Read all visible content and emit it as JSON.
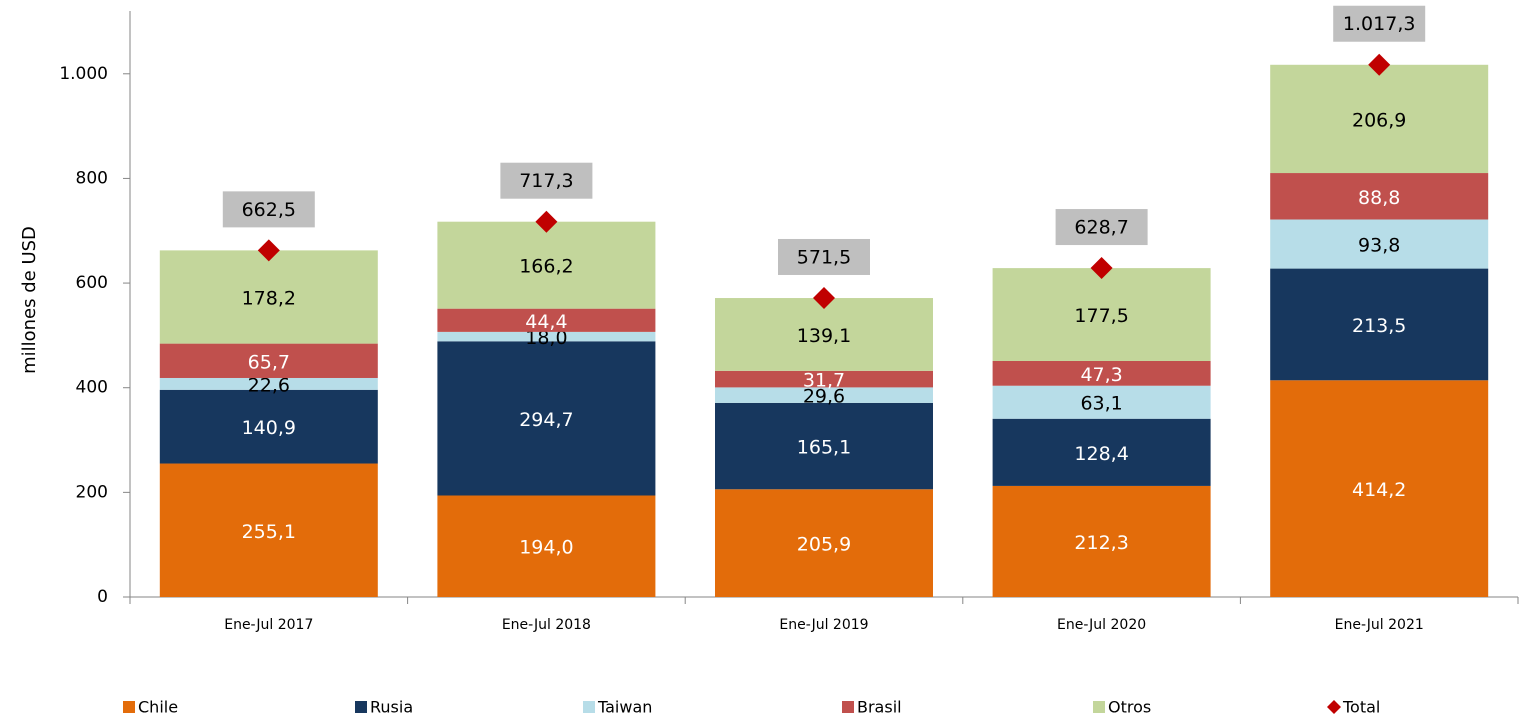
{
  "chart_data": {
    "type": "bar",
    "stacked": true,
    "y_label": "millones de  USD",
    "categories": [
      "Ene-Jul 2017",
      "Ene-Jul 2018",
      "Ene-Jul 2019",
      "Ene-Jul 2020",
      "Ene-Jul 2021"
    ],
    "series": [
      {
        "name": "Chile",
        "color": "#e36c0a",
        "values": [
          255.1,
          194.0,
          205.9,
          212.3,
          414.2
        ],
        "value_labels": [
          "255,1",
          "194,0",
          "205,9",
          "212,3",
          "414,2"
        ]
      },
      {
        "name": "Rusia",
        "color": "#17375e",
        "values": [
          140.9,
          294.7,
          165.1,
          128.4,
          213.5
        ],
        "value_labels": [
          "140,9",
          "294,7",
          "165,1",
          "128,4",
          "213,5"
        ]
      },
      {
        "name": "Taiwan",
        "color": "#b7dde8",
        "values": [
          22.6,
          18.0,
          29.6,
          63.1,
          93.8
        ],
        "value_labels": [
          "22,6",
          "18,0",
          "29,6",
          "63,1",
          "93,8"
        ]
      },
      {
        "name": "Brasil",
        "color": "#c0504d",
        "values": [
          65.7,
          44.4,
          31.7,
          47.3,
          88.8
        ],
        "value_labels": [
          "65,7",
          "44,4",
          "31,7",
          "47,3",
          "88,8"
        ]
      },
      {
        "name": "Otros",
        "color": "#c3d69b",
        "values": [
          178.2,
          166.2,
          139.1,
          177.5,
          206.9
        ],
        "value_labels": [
          "178,2",
          "166,2",
          "139,1",
          "177,5",
          "206,9"
        ]
      },
      {
        "name": "Total",
        "type": "scatter",
        "color": "#c00000",
        "values": [
          662.5,
          717.3,
          571.5,
          628.7,
          1017.3
        ],
        "value_labels": [
          "662,5",
          "717,3",
          "571,5",
          "628,7",
          "1.017,3"
        ]
      }
    ],
    "ylim": [
      0,
      1120
    ],
    "yticks": [
      0,
      200,
      400,
      600,
      800,
      {
        "value": 1000,
        "label": "1.000"
      }
    ],
    "legend": "bottom"
  }
}
